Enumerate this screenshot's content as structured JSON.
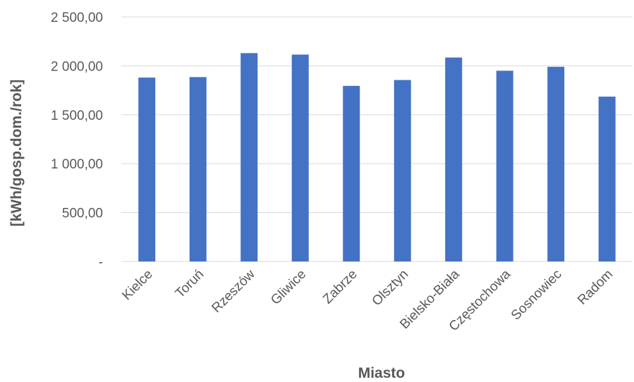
{
  "chart_data": {
    "type": "bar",
    "title": "",
    "xlabel": "Miasto",
    "ylabel": "[kWh/gosp.dom./rok]",
    "categories": [
      "Kielce",
      "Toruń",
      "Rzeszów",
      "Gliwice",
      "Zabrze",
      "Olsztyn",
      "Bielsko-Biała",
      "Częstochowa",
      "Sosnowiec",
      "Radom"
    ],
    "values": [
      1880,
      1885,
      2130,
      2115,
      1795,
      1855,
      2085,
      1950,
      1990,
      1685
    ],
    "ylim": [
      0,
      2500
    ],
    "yticks": [
      0,
      500,
      1000,
      1500,
      2000,
      2500
    ],
    "ytick_labels": [
      "-",
      "500,00",
      "1 000,00",
      "1 500,00",
      "2 000,00",
      "2 500,00"
    ],
    "grid": true,
    "legend": "none",
    "colors": {
      "bar": "#4472C4",
      "grid": "#D9D9D9",
      "text": "#595959"
    }
  }
}
